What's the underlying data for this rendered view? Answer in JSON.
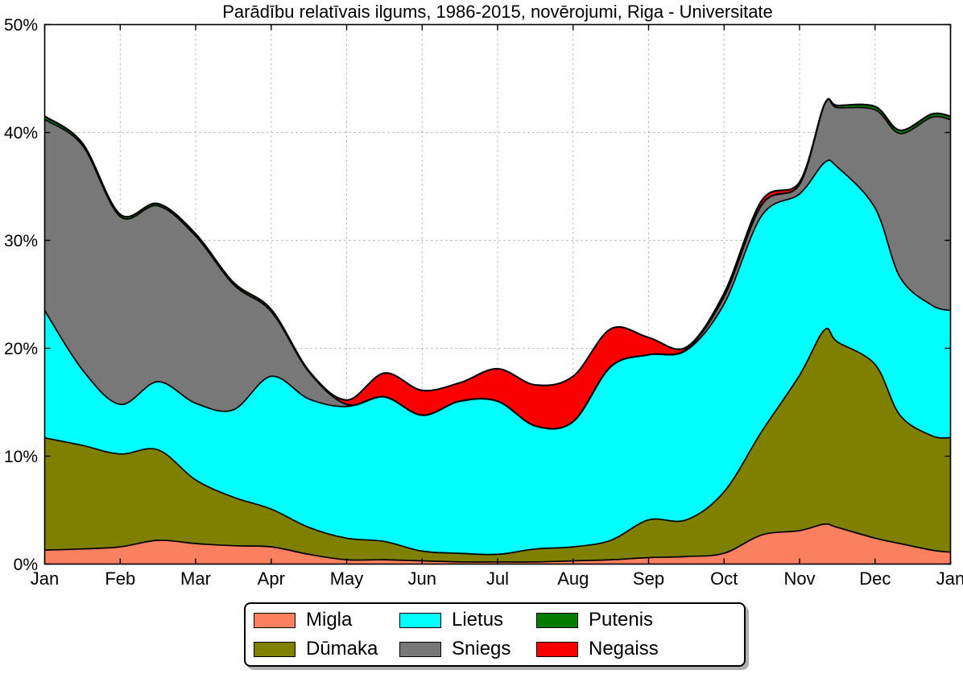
{
  "chart_data": {
    "type": "area",
    "stacked": true,
    "title": "Parādību relatīvais ilgums, 1986-2015, novērojumi, Riga - Universitate",
    "xlabel": "",
    "ylabel": "",
    "ylim": [
      0,
      50
    ],
    "grid": true,
    "grid_style": "dashed",
    "legend_position": "below-center",
    "x_unit": "months, 0 = start of Jan, 12 = end of Dec",
    "x": [
      0,
      0.5,
      1,
      1.5,
      2,
      2.5,
      3,
      3.5,
      4,
      4.5,
      5,
      5.5,
      6,
      6.5,
      7,
      7.5,
      8,
      8.5,
      9,
      9.5,
      10,
      10.33,
      10.5,
      11,
      11.33,
      11.75,
      12
    ],
    "x_tick_positions": [
      0,
      1,
      2,
      3,
      4,
      5,
      6,
      7,
      8,
      9,
      10,
      11,
      12
    ],
    "x_tick_labels": [
      "Jan",
      "Feb",
      "Mar",
      "Apr",
      "May",
      "Jun",
      "Jul",
      "Aug",
      "Sep",
      "Oct",
      "Nov",
      "Dec",
      "Jan"
    ],
    "y_tick_values": [
      0,
      10,
      20,
      30,
      40,
      50
    ],
    "y_tick_labels": [
      "0%",
      "10%",
      "20%",
      "30%",
      "40%",
      "50%"
    ],
    "edge_color": "#000000",
    "series": [
      {
        "name": "Migla",
        "color": "#fa8060",
        "values": [
          1.3,
          1.4,
          1.6,
          2.2,
          1.9,
          1.7,
          1.6,
          0.9,
          0.4,
          0.4,
          0.3,
          0.2,
          0.2,
          0.2,
          0.3,
          0.4,
          0.6,
          0.7,
          1.0,
          2.7,
          3.1,
          3.7,
          3.4,
          2.4,
          1.9,
          1.3,
          1.1
        ]
      },
      {
        "name": "Dūmaka",
        "color": "#7f7f00",
        "values": [
          10.4,
          9.6,
          8.6,
          8.4,
          5.9,
          4.5,
          3.5,
          2.5,
          2.0,
          1.7,
          0.9,
          0.8,
          0.7,
          1.2,
          1.3,
          1.8,
          3.5,
          3.4,
          5.7,
          9.6,
          14.4,
          18.0,
          17.2,
          16.1,
          11.9,
          10.6,
          10.6
        ]
      },
      {
        "name": "Lietus",
        "color": "#00ffff",
        "values": [
          11.8,
          7.0,
          4.6,
          6.3,
          7.1,
          8.1,
          12.3,
          11.9,
          12.2,
          13.4,
          12.6,
          14.1,
          14.2,
          11.4,
          11.6,
          16.1,
          15.3,
          15.7,
          17.4,
          20.0,
          16.8,
          15.5,
          16.2,
          14.5,
          12.8,
          12.1,
          11.8
        ]
      },
      {
        "name": "Sniegs",
        "color": "#787878",
        "values": [
          17.7,
          20.8,
          17.4,
          16.3,
          15.5,
          11.6,
          6.0,
          2.5,
          0.2,
          0.0,
          0.0,
          0.0,
          0.0,
          0.0,
          0.0,
          0.0,
          0.0,
          0.1,
          0.7,
          1.0,
          0.9,
          5.4,
          5.5,
          9.1,
          13.3,
          17.4,
          17.7
        ]
      },
      {
        "name": "Putenis",
        "color": "#007d00",
        "values": [
          0.3,
          0.2,
          0.2,
          0.2,
          0.2,
          0.2,
          0.2,
          0.1,
          0.0,
          0.0,
          0.0,
          0.0,
          0.0,
          0.0,
          0.0,
          0.0,
          0.0,
          0.0,
          0.0,
          0.0,
          0.0,
          0.0,
          0.2,
          0.3,
          0.3,
          0.3,
          0.3
        ]
      },
      {
        "name": "Negaiss",
        "color": "#fb0000",
        "values": [
          0.0,
          0.0,
          0.0,
          0.0,
          0.0,
          0.0,
          0.0,
          0.0,
          0.4,
          2.2,
          2.3,
          1.7,
          3.0,
          3.8,
          4.2,
          3.5,
          1.6,
          0.2,
          0.3,
          0.4,
          0.2,
          0.0,
          0.0,
          0.0,
          0.0,
          0.0,
          0.0
        ]
      }
    ]
  }
}
